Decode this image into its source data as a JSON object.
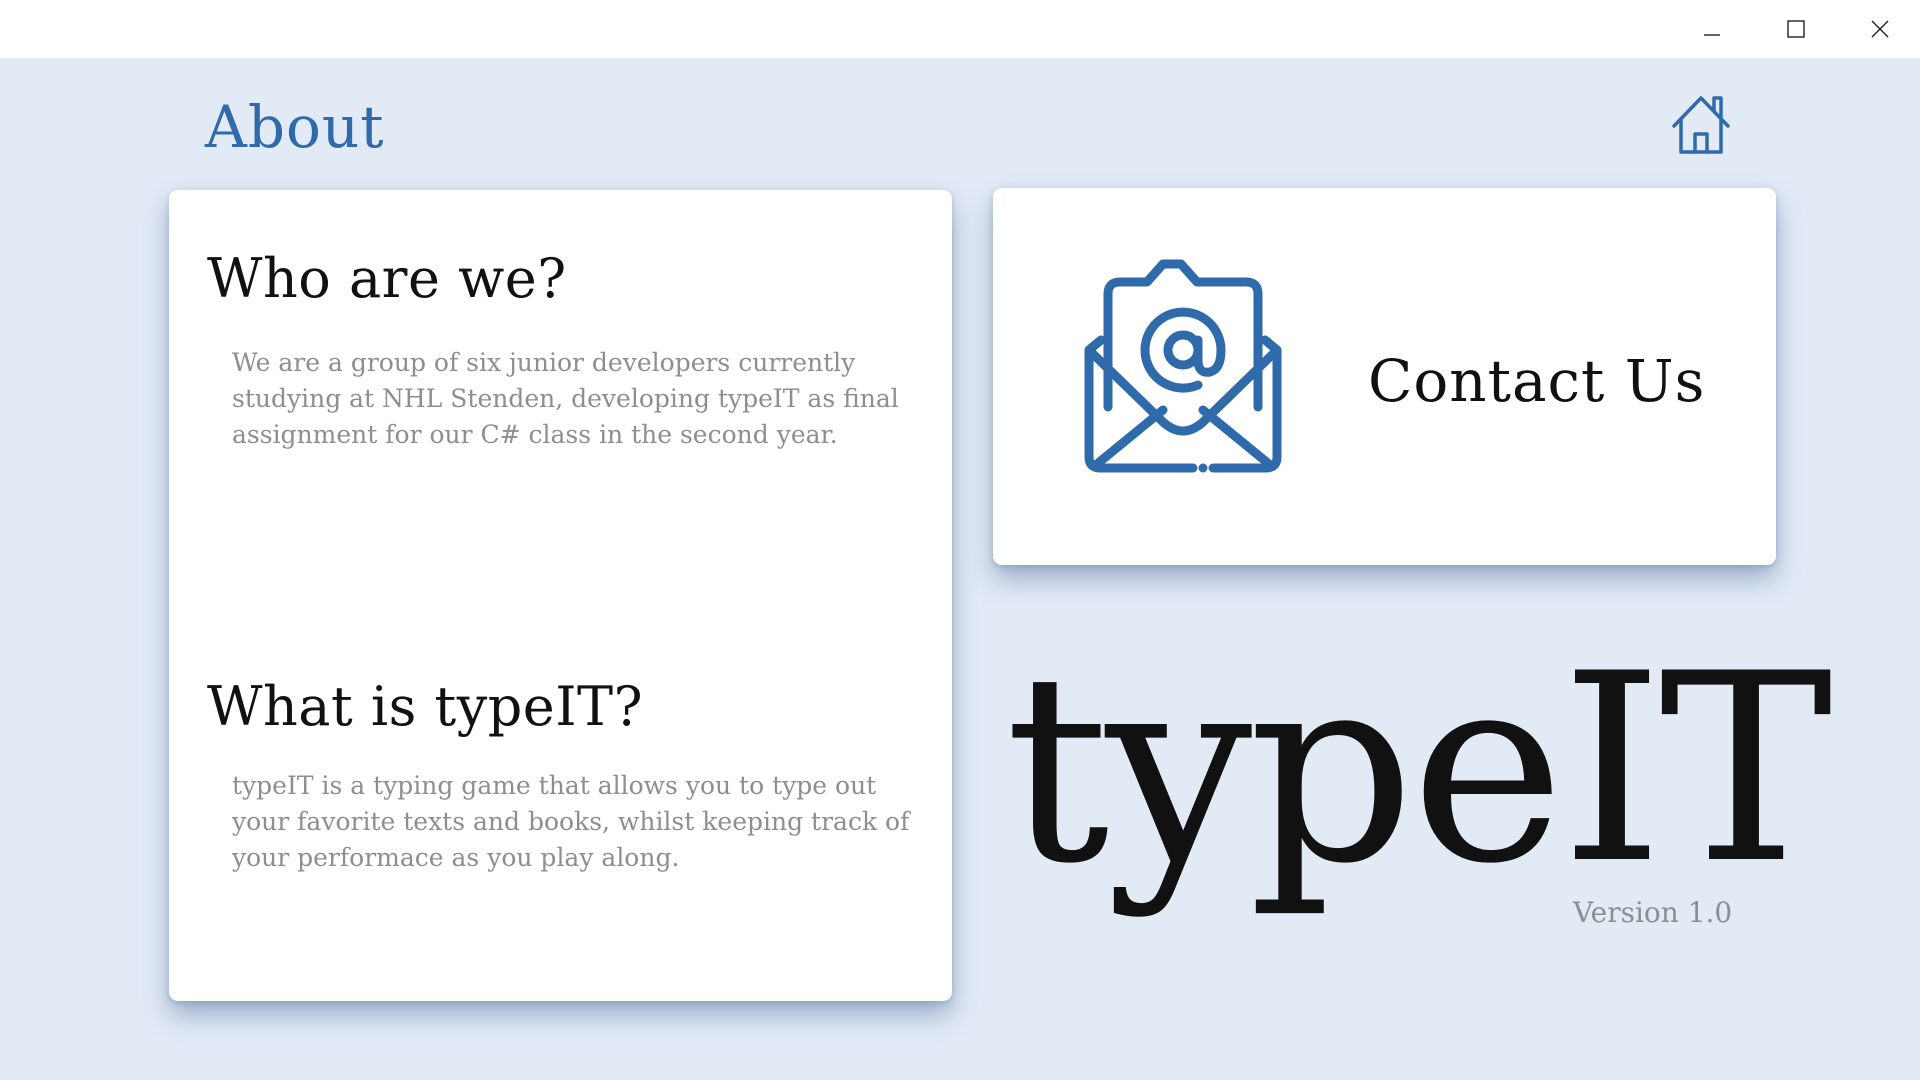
{
  "window": {
    "controls": {
      "minimize_icon": "minimize-icon",
      "maximize_icon": "maximize-icon",
      "close_icon": "close-icon"
    }
  },
  "header": {
    "title": "About",
    "home_icon": "home-icon"
  },
  "about": {
    "who": {
      "heading": "Who are we?",
      "body": "We are a group of six junior developers currently studying at NHL Stenden, developing typeIT as final assignment for our C# class in the second year."
    },
    "what": {
      "heading": "What is typeIT?",
      "body": "typeIT is a typing game that allows you to type out your favorite texts and books, whilst keeping track of your performace as you play along."
    }
  },
  "contact": {
    "label": "Contact Us",
    "icon": "mail-at-icon"
  },
  "branding": {
    "logo": "typeIT",
    "version": "Version 1.0"
  },
  "colors": {
    "accent": "#2f6aab",
    "background": "#e2eaf6",
    "card": "#ffffff",
    "heading_text": "#111111",
    "body_text": "#8e8e8e"
  }
}
